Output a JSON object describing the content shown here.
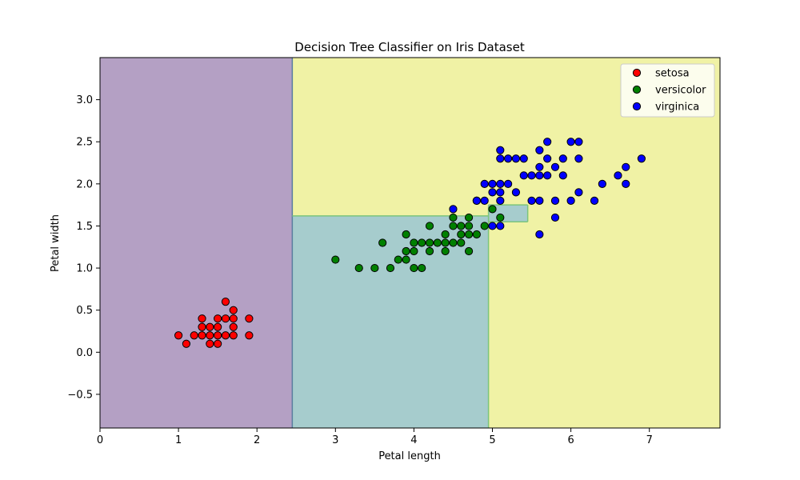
{
  "chart_data": {
    "type": "scatter",
    "title": "Decision Tree Classifier on Iris Dataset",
    "xlabel": "Petal length",
    "ylabel": "Petal width",
    "xlim": [
      0,
      7.9
    ],
    "ylim": [
      -0.9,
      3.5
    ],
    "xticks": [
      0,
      1,
      2,
      3,
      4,
      5,
      6,
      7
    ],
    "yticks": [
      -0.5,
      0.0,
      0.5,
      1.0,
      1.5,
      2.0,
      2.5,
      3.0
    ],
    "xtick_labels": [
      "0",
      "1",
      "2",
      "3",
      "4",
      "5",
      "6",
      "7"
    ],
    "ytick_labels": [
      "−0.5",
      "0.0",
      "0.5",
      "1.0",
      "1.5",
      "2.0",
      "2.5",
      "3.0"
    ],
    "legend_position": "top-right",
    "grid": false,
    "decision_regions": [
      {
        "class": "setosa",
        "x": [
          0,
          2.45
        ],
        "y": [
          -0.9,
          3.5
        ],
        "color": "#b4a0c4"
      },
      {
        "class": "versicolor",
        "x": [
          2.45,
          4.95
        ],
        "y": [
          -0.9,
          1.62
        ],
        "color": "#a6cccd"
      },
      {
        "class": "versicolor",
        "x": [
          4.95,
          5.45
        ],
        "y": [
          1.55,
          1.75
        ],
        "color": "#a6cccd"
      },
      {
        "class": "virginica",
        "x": [
          2.45,
          7.9
        ],
        "y": [
          -0.9,
          3.5
        ],
        "color": "#f0f2a5"
      }
    ],
    "series": [
      {
        "name": "setosa",
        "color": "#ff0000",
        "points": [
          [
            1.0,
            0.2
          ],
          [
            1.1,
            0.1
          ],
          [
            1.2,
            0.2
          ],
          [
            1.3,
            0.2
          ],
          [
            1.3,
            0.3
          ],
          [
            1.3,
            0.4
          ],
          [
            1.4,
            0.1
          ],
          [
            1.4,
            0.2
          ],
          [
            1.4,
            0.3
          ],
          [
            1.5,
            0.1
          ],
          [
            1.5,
            0.2
          ],
          [
            1.5,
            0.3
          ],
          [
            1.5,
            0.4
          ],
          [
            1.6,
            0.2
          ],
          [
            1.6,
            0.4
          ],
          [
            1.6,
            0.6
          ],
          [
            1.7,
            0.2
          ],
          [
            1.7,
            0.3
          ],
          [
            1.7,
            0.4
          ],
          [
            1.7,
            0.5
          ],
          [
            1.9,
            0.2
          ],
          [
            1.9,
            0.4
          ]
        ]
      },
      {
        "name": "versicolor",
        "color": "#008000",
        "points": [
          [
            3.0,
            1.1
          ],
          [
            3.3,
            1.0
          ],
          [
            3.5,
            1.0
          ],
          [
            3.6,
            1.3
          ],
          [
            3.7,
            1.0
          ],
          [
            3.8,
            1.1
          ],
          [
            3.9,
            1.1
          ],
          [
            3.9,
            1.2
          ],
          [
            3.9,
            1.4
          ],
          [
            4.0,
            1.0
          ],
          [
            4.0,
            1.2
          ],
          [
            4.0,
            1.3
          ],
          [
            4.1,
            1.0
          ],
          [
            4.1,
            1.3
          ],
          [
            4.2,
            1.2
          ],
          [
            4.2,
            1.3
          ],
          [
            4.2,
            1.5
          ],
          [
            4.3,
            1.3
          ],
          [
            4.4,
            1.2
          ],
          [
            4.4,
            1.3
          ],
          [
            4.4,
            1.4
          ],
          [
            4.5,
            1.3
          ],
          [
            4.5,
            1.5
          ],
          [
            4.5,
            1.6
          ],
          [
            4.6,
            1.3
          ],
          [
            4.6,
            1.4
          ],
          [
            4.6,
            1.5
          ],
          [
            4.7,
            1.2
          ],
          [
            4.7,
            1.4
          ],
          [
            4.7,
            1.5
          ],
          [
            4.7,
            1.6
          ],
          [
            4.8,
            1.4
          ],
          [
            4.8,
            1.8
          ],
          [
            4.9,
            1.5
          ],
          [
            5.0,
            1.7
          ],
          [
            5.1,
            1.6
          ]
        ]
      },
      {
        "name": "virginica",
        "color": "#0000ff",
        "points": [
          [
            4.5,
            1.7
          ],
          [
            4.8,
            1.8
          ],
          [
            4.9,
            1.8
          ],
          [
            4.9,
            2.0
          ],
          [
            5.0,
            1.5
          ],
          [
            5.0,
            1.9
          ],
          [
            5.0,
            2.0
          ],
          [
            5.1,
            1.5
          ],
          [
            5.1,
            1.8
          ],
          [
            5.1,
            1.9
          ],
          [
            5.1,
            2.0
          ],
          [
            5.1,
            2.3
          ],
          [
            5.1,
            2.4
          ],
          [
            5.2,
            2.0
          ],
          [
            5.2,
            2.3
          ],
          [
            5.3,
            1.9
          ],
          [
            5.3,
            2.3
          ],
          [
            5.4,
            2.1
          ],
          [
            5.4,
            2.3
          ],
          [
            5.5,
            1.8
          ],
          [
            5.5,
            2.1
          ],
          [
            5.6,
            1.4
          ],
          [
            5.6,
            1.8
          ],
          [
            5.6,
            2.1
          ],
          [
            5.6,
            2.2
          ],
          [
            5.6,
            2.4
          ],
          [
            5.7,
            2.1
          ],
          [
            5.7,
            2.3
          ],
          [
            5.7,
            2.5
          ],
          [
            5.8,
            1.6
          ],
          [
            5.8,
            1.8
          ],
          [
            5.8,
            2.2
          ],
          [
            5.9,
            2.1
          ],
          [
            5.9,
            2.3
          ],
          [
            6.0,
            1.8
          ],
          [
            6.0,
            2.5
          ],
          [
            6.1,
            1.9
          ],
          [
            6.1,
            2.3
          ],
          [
            6.1,
            2.5
          ],
          [
            6.3,
            1.8
          ],
          [
            6.4,
            2.0
          ],
          [
            6.6,
            2.1
          ],
          [
            6.7,
            2.0
          ],
          [
            6.7,
            2.2
          ],
          [
            6.9,
            2.3
          ]
        ]
      }
    ]
  }
}
